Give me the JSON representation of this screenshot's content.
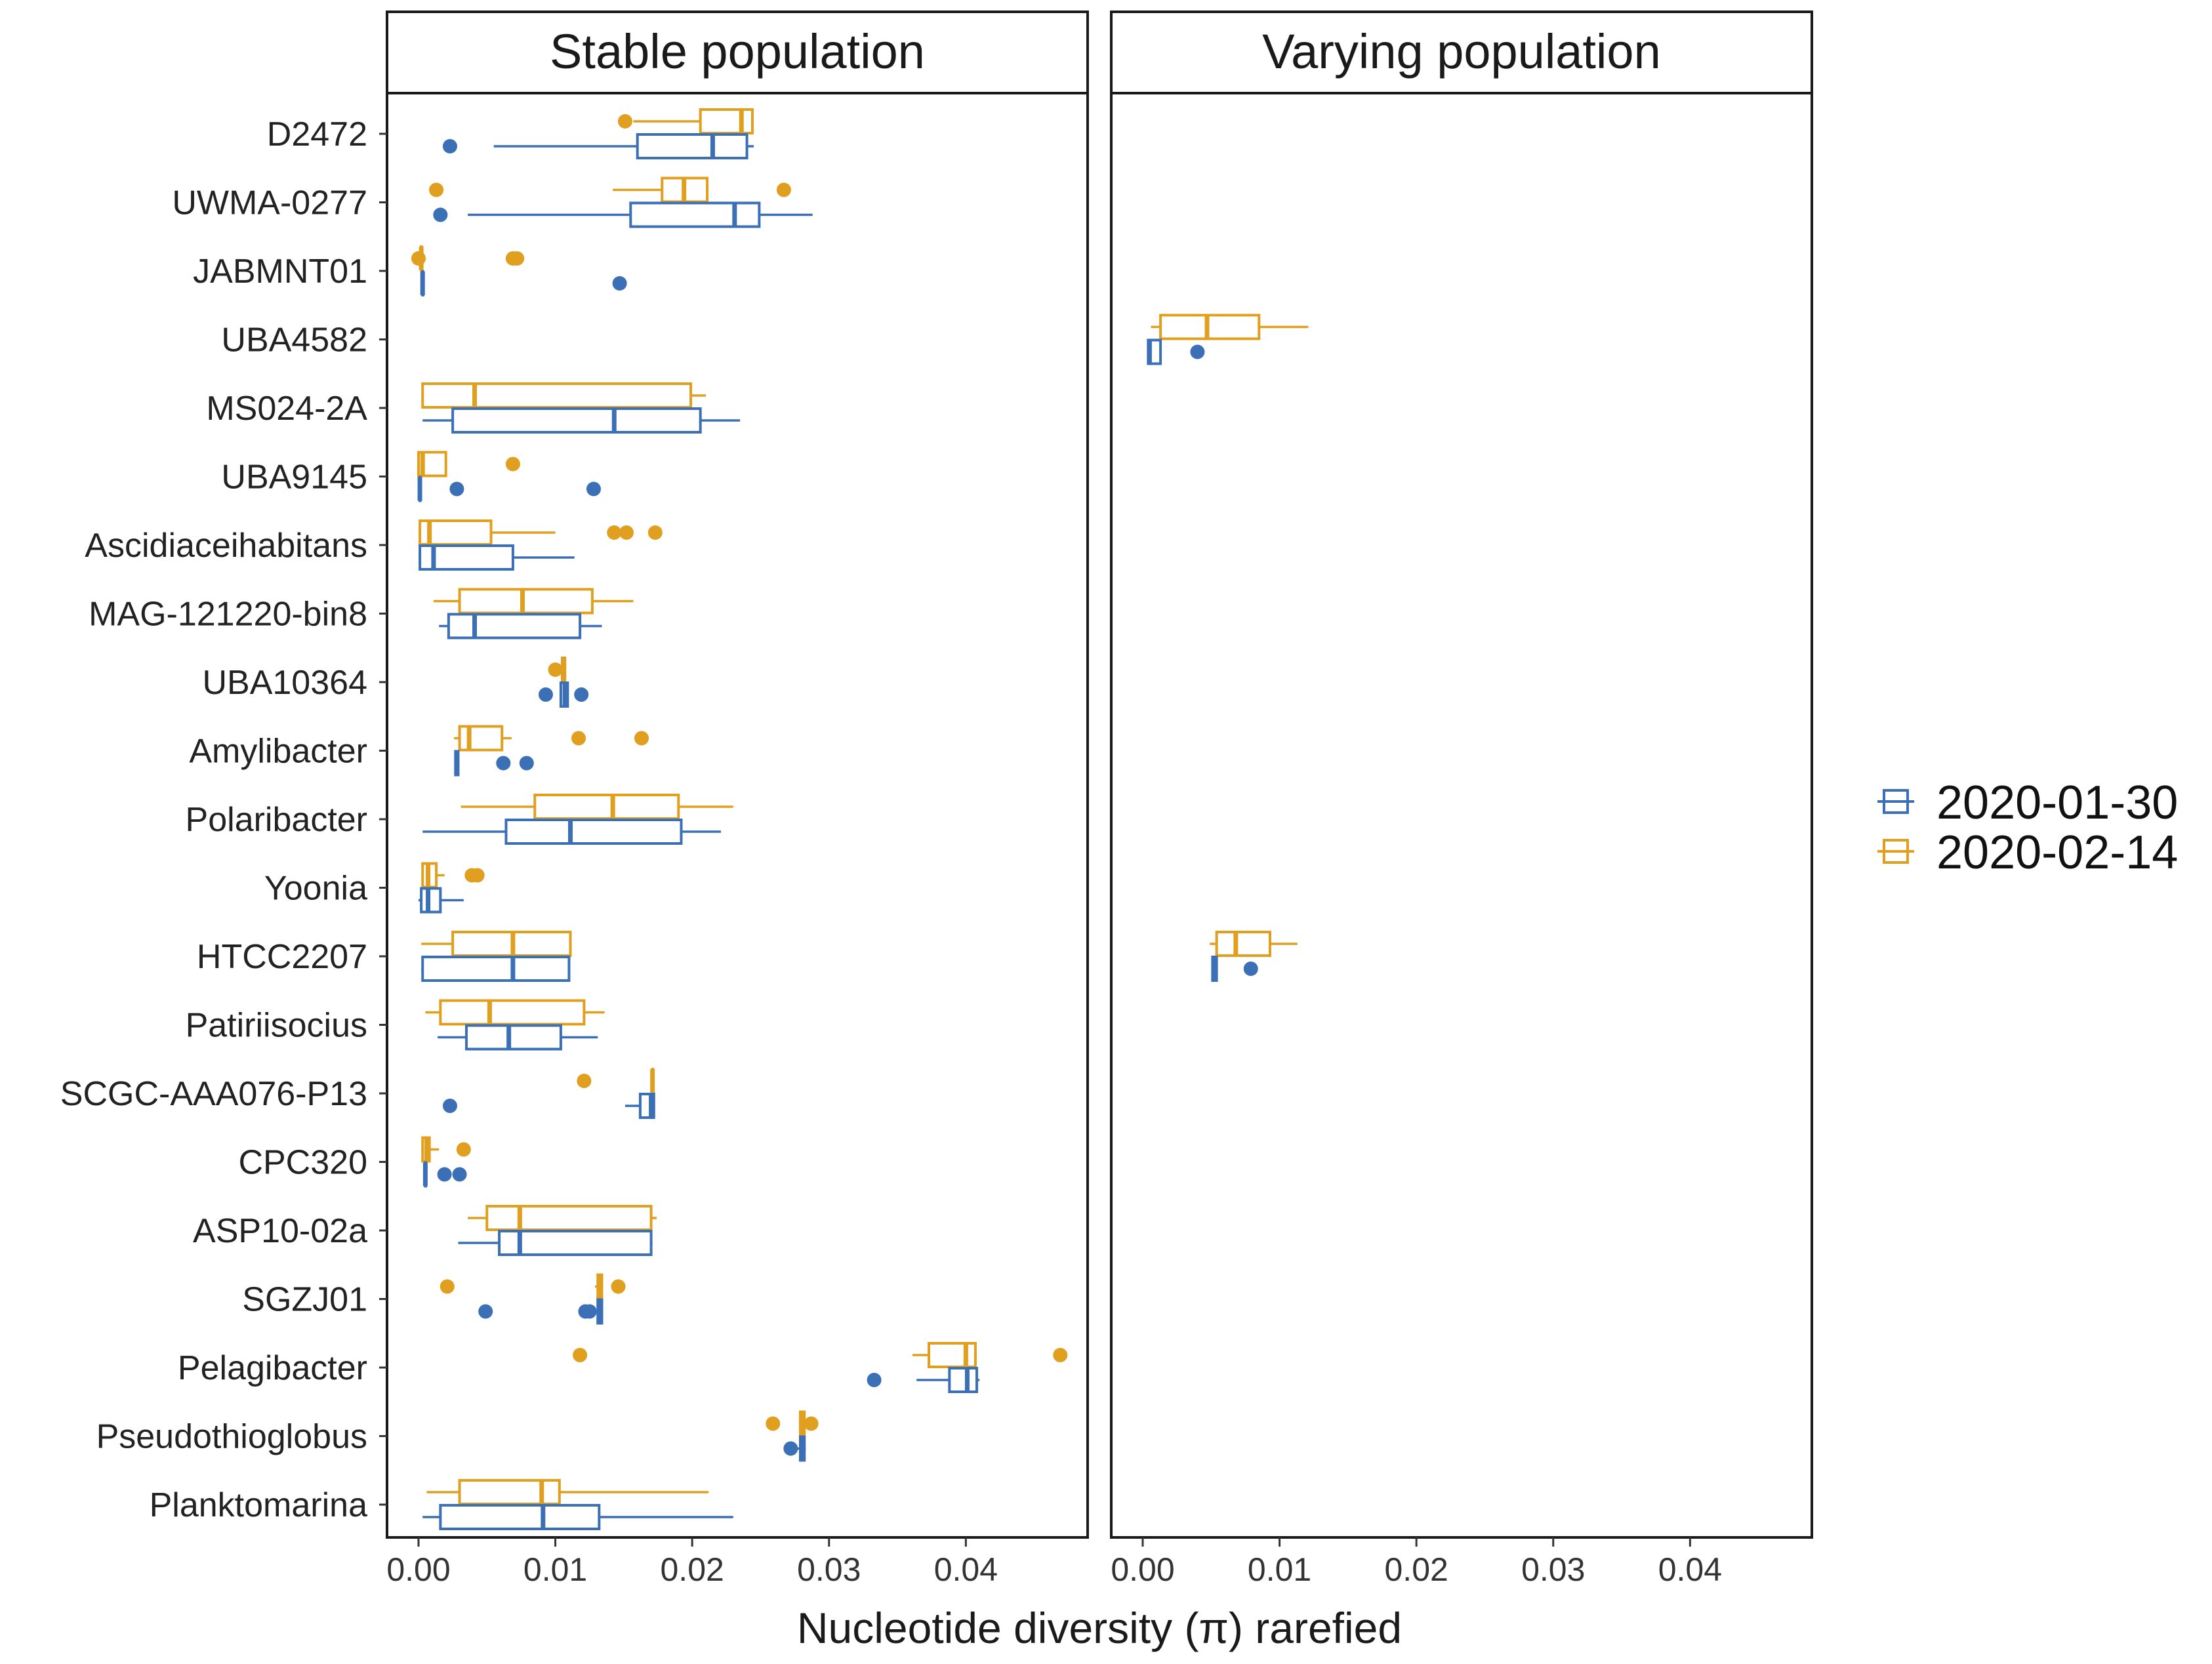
{
  "chart_data": {
    "type": "boxplot",
    "orientation": "horizontal",
    "xlabel": "Nucleotide diversity (π) rarefied",
    "ylabel": "",
    "xlim": [
      -0.0023,
      0.0489
    ],
    "xticks": [
      0,
      0.01,
      0.02,
      0.03,
      0.04
    ],
    "xtick_labels": [
      "0.00",
      "0.01",
      "0.02",
      "0.03",
      "0.04"
    ],
    "colors": {
      "2020-01-30": "#3b6fb6",
      "2020-02-14": "#e09f1f"
    },
    "legend": {
      "position": "right",
      "entries": [
        {
          "label": "2020-01-30",
          "color": "#3b6fb6"
        },
        {
          "label": "2020-02-14",
          "color": "#e09f1f"
        }
      ]
    },
    "categories": [
      "D2472",
      "UWMA-0277",
      "JABMNT01",
      "UBA4582",
      "MS024-2A",
      "UBA9145",
      "Ascidiaceihabitans",
      "MAG-121220-bin8",
      "UBA10364",
      "Amylibacter",
      "Polaribacter",
      "Yoonia",
      "HTCC2207",
      "Patiriisocius",
      "SCGC-AAA076-P13",
      "CPC320",
      "ASP10-02a",
      "SGZJ01",
      "Pelagibacter",
      "Pseudothioglobus",
      "Planktomarina"
    ],
    "panels": [
      {
        "title": "Stable population",
        "boxes": [
          {
            "category": "D2472",
            "series": "2020-02-14",
            "whisker_low": 0.0157,
            "q1": 0.0206,
            "median": 0.0236,
            "q3": 0.0244,
            "whisker_high": 0.0245,
            "outliers": [
              0.0151
            ]
          },
          {
            "category": "D2472",
            "series": "2020-01-30",
            "whisker_low": 0.0055,
            "q1": 0.016,
            "median": 0.0215,
            "q3": 0.024,
            "whisker_high": 0.0245,
            "outliers": [
              0.0023
            ]
          },
          {
            "category": "UWMA-0277",
            "series": "2020-02-14",
            "whisker_low": 0.0142,
            "q1": 0.0178,
            "median": 0.0194,
            "q3": 0.0211,
            "whisker_high": 0.0211,
            "outliers": [
              0.0013,
              0.0267
            ]
          },
          {
            "category": "UWMA-0277",
            "series": "2020-01-30",
            "whisker_low": 0.0036,
            "q1": 0.0155,
            "median": 0.0231,
            "q3": 0.0249,
            "whisker_high": 0.0288,
            "outliers": [
              0.0016
            ]
          },
          {
            "category": "JABMNT01",
            "series": "2020-02-14",
            "whisker_low": 0.0002,
            "q1": 0.0002,
            "median": 0.0002,
            "q3": 0.0002,
            "whisker_high": 0.0002,
            "outliers": [
              0.0,
              0.0069,
              0.0072
            ]
          },
          {
            "category": "JABMNT01",
            "series": "2020-01-30",
            "whisker_low": 0.0003,
            "q1": 0.0003,
            "median": 0.0003,
            "q3": 0.0003,
            "whisker_high": 0.0003,
            "outliers": [
              0.0147
            ]
          },
          {
            "category": "MS024-2A",
            "series": "2020-02-14",
            "whisker_low": 0.0003,
            "q1": 0.0003,
            "median": 0.0041,
            "q3": 0.0199,
            "whisker_high": 0.021,
            "outliers": []
          },
          {
            "category": "MS024-2A",
            "series": "2020-01-30",
            "whisker_low": 0.0003,
            "q1": 0.0025,
            "median": 0.0143,
            "q3": 0.0206,
            "whisker_high": 0.0235,
            "outliers": []
          },
          {
            "category": "UBA9145",
            "series": "2020-02-14",
            "whisker_low": 0.0,
            "q1": 0.0,
            "median": 0.0003,
            "q3": 0.002,
            "whisker_high": 0.002,
            "outliers": [
              0.0069
            ]
          },
          {
            "category": "UBA9145",
            "series": "2020-01-30",
            "whisker_low": 0.0001,
            "q1": 0.0001,
            "median": 0.0001,
            "q3": 0.0001,
            "whisker_high": 0.0001,
            "outliers": [
              0.0028,
              0.0128
            ]
          },
          {
            "category": "Ascidiaceihabitans",
            "series": "2020-02-14",
            "whisker_low": 0.0,
            "q1": 0.0001,
            "median": 0.0008,
            "q3": 0.0053,
            "whisker_high": 0.01,
            "outliers": [
              0.0143,
              0.0152,
              0.0173
            ]
          },
          {
            "category": "Ascidiaceihabitans",
            "series": "2020-01-30",
            "whisker_low": 0.0,
            "q1": 0.0001,
            "median": 0.0011,
            "q3": 0.0069,
            "whisker_high": 0.0114,
            "outliers": []
          },
          {
            "category": "MAG-121220-bin8",
            "series": "2020-02-14",
            "whisker_low": 0.0011,
            "q1": 0.003,
            "median": 0.0076,
            "q3": 0.0127,
            "whisker_high": 0.0157,
            "outliers": []
          },
          {
            "category": "MAG-121220-bin8",
            "series": "2020-01-30",
            "whisker_low": 0.0015,
            "q1": 0.0022,
            "median": 0.0041,
            "q3": 0.0118,
            "whisker_high": 0.0134,
            "outliers": []
          },
          {
            "category": "UBA10364",
            "series": "2020-02-14",
            "whisker_low": 0.0105,
            "q1": 0.0105,
            "median": 0.0106,
            "q3": 0.0107,
            "whisker_high": 0.0107,
            "outliers": [
              0.01
            ]
          },
          {
            "category": "UBA10364",
            "series": "2020-01-30",
            "whisker_low": 0.0104,
            "q1": 0.0104,
            "median": 0.0107,
            "q3": 0.0109,
            "whisker_high": 0.0109,
            "outliers": [
              0.0093,
              0.0119
            ]
          },
          {
            "category": "Amylibacter",
            "series": "2020-02-14",
            "whisker_low": 0.0026,
            "q1": 0.003,
            "median": 0.0037,
            "q3": 0.0061,
            "whisker_high": 0.0068,
            "outliers": [
              0.0117,
              0.0163
            ]
          },
          {
            "category": "Amylibacter",
            "series": "2020-01-30",
            "whisker_low": 0.0027,
            "q1": 0.0027,
            "median": 0.0028,
            "q3": 0.0029,
            "whisker_high": 0.0029,
            "outliers": [
              0.0062,
              0.0079
            ]
          },
          {
            "category": "Polaribacter",
            "series": "2020-02-14",
            "whisker_low": 0.0031,
            "q1": 0.0085,
            "median": 0.0142,
            "q3": 0.019,
            "whisker_high": 0.023,
            "outliers": []
          },
          {
            "category": "Polaribacter",
            "series": "2020-01-30",
            "whisker_low": 0.0003,
            "q1": 0.0064,
            "median": 0.0111,
            "q3": 0.0192,
            "whisker_high": 0.0221,
            "outliers": []
          },
          {
            "category": "Yoonia",
            "series": "2020-02-14",
            "whisker_low": 0.0002,
            "q1": 0.0003,
            "median": 0.0007,
            "q3": 0.0013,
            "whisker_high": 0.0019,
            "outliers": [
              0.0039,
              0.0043
            ]
          },
          {
            "category": "Yoonia",
            "series": "2020-01-30",
            "whisker_low": 0.0,
            "q1": 0.0002,
            "median": 0.0007,
            "q3": 0.0016,
            "whisker_high": 0.0033,
            "outliers": []
          },
          {
            "category": "HTCC2207",
            "series": "2020-02-14",
            "whisker_low": 0.0002,
            "q1": 0.0025,
            "median": 0.0069,
            "q3": 0.0111,
            "whisker_high": 0.0111,
            "outliers": []
          },
          {
            "category": "HTCC2207",
            "series": "2020-01-30",
            "whisker_low": 0.0002,
            "q1": 0.0003,
            "median": 0.0069,
            "q3": 0.011,
            "whisker_high": 0.011,
            "outliers": []
          },
          {
            "category": "Patiriisocius",
            "series": "2020-02-14",
            "whisker_low": 0.0005,
            "q1": 0.0016,
            "median": 0.0052,
            "q3": 0.0121,
            "whisker_high": 0.0136,
            "outliers": []
          },
          {
            "category": "Patiriisocius",
            "series": "2020-01-30",
            "whisker_low": 0.0014,
            "q1": 0.0035,
            "median": 0.0066,
            "q3": 0.0104,
            "whisker_high": 0.0131,
            "outliers": []
          },
          {
            "category": "SCGC-AAA076-P13",
            "series": "2020-02-14",
            "whisker_low": 0.0171,
            "q1": 0.0171,
            "median": 0.0171,
            "q3": 0.0171,
            "whisker_high": 0.0171,
            "outliers": [
              0.0121
            ]
          },
          {
            "category": "SCGC-AAA076-P13",
            "series": "2020-01-30",
            "whisker_low": 0.0151,
            "q1": 0.0162,
            "median": 0.017,
            "q3": 0.0172,
            "whisker_high": 0.0172,
            "outliers": [
              0.0023
            ]
          },
          {
            "category": "CPC320",
            "series": "2020-02-14",
            "whisker_low": 0.0002,
            "q1": 0.0003,
            "median": 0.0006,
            "q3": 0.0008,
            "whisker_high": 0.0015,
            "outliers": [
              0.0033
            ]
          },
          {
            "category": "CPC320",
            "series": "2020-01-30",
            "whisker_low": 0.0005,
            "q1": 0.0005,
            "median": 0.0005,
            "q3": 0.0005,
            "whisker_high": 0.0005,
            "outliers": [
              0.0019,
              0.003
            ]
          },
          {
            "category": "ASP10-02a",
            "series": "2020-02-14",
            "whisker_low": 0.0036,
            "q1": 0.005,
            "median": 0.0074,
            "q3": 0.017,
            "whisker_high": 0.0174,
            "outliers": []
          },
          {
            "category": "ASP10-02a",
            "series": "2020-01-30",
            "whisker_low": 0.0029,
            "q1": 0.0059,
            "median": 0.0074,
            "q3": 0.017,
            "whisker_high": 0.0171,
            "outliers": []
          },
          {
            "category": "SGZJ01",
            "series": "2020-02-14",
            "whisker_low": 0.0129,
            "q1": 0.0131,
            "median": 0.0133,
            "q3": 0.0134,
            "whisker_high": 0.0135,
            "outliers": [
              0.0021,
              0.0146
            ]
          },
          {
            "category": "SGZJ01",
            "series": "2020-01-30",
            "whisker_low": 0.0131,
            "q1": 0.0131,
            "median": 0.0133,
            "q3": 0.0134,
            "whisker_high": 0.0134,
            "outliers": [
              0.0049,
              0.0122,
              0.0125
            ]
          },
          {
            "category": "Pelagibacter",
            "series": "2020-02-14",
            "whisker_low": 0.0361,
            "q1": 0.0373,
            "median": 0.04,
            "q3": 0.0407,
            "whisker_high": 0.0408,
            "outliers": [
              0.0118,
              0.0469
            ]
          },
          {
            "category": "Pelagibacter",
            "series": "2020-01-30",
            "whisker_low": 0.0364,
            "q1": 0.0388,
            "median": 0.0401,
            "q3": 0.0408,
            "whisker_high": 0.041,
            "outliers": [
              0.0333
            ]
          },
          {
            "category": "Pseudothioglobus",
            "series": "2020-02-14",
            "whisker_low": 0.0278,
            "q1": 0.0279,
            "median": 0.0281,
            "q3": 0.0282,
            "whisker_high": 0.0283,
            "outliers": [
              0.0259,
              0.0287
            ]
          },
          {
            "category": "Pseudothioglobus",
            "series": "2020-01-30",
            "whisker_low": 0.0276,
            "q1": 0.0279,
            "median": 0.0281,
            "q3": 0.0282,
            "whisker_high": 0.0283,
            "outliers": [
              0.0272
            ]
          },
          {
            "category": "Planktomarina",
            "series": "2020-02-14",
            "whisker_low": 0.0006,
            "q1": 0.003,
            "median": 0.009,
            "q3": 0.0103,
            "whisker_high": 0.0212,
            "outliers": []
          },
          {
            "category": "Planktomarina",
            "series": "2020-01-30",
            "whisker_low": 0.0003,
            "q1": 0.0016,
            "median": 0.0091,
            "q3": 0.0132,
            "whisker_high": 0.023,
            "outliers": []
          }
        ]
      },
      {
        "title": "Varying population",
        "boxes": [
          {
            "category": "UBA4582",
            "series": "2020-02-14",
            "whisker_low": 0.0006,
            "q1": 0.0013,
            "median": 0.0047,
            "q3": 0.0085,
            "whisker_high": 0.0121,
            "outliers": []
          },
          {
            "category": "UBA4582",
            "series": "2020-01-30",
            "whisker_low": 0.0004,
            "q1": 0.0004,
            "median": 0.0005,
            "q3": 0.0013,
            "whisker_high": 0.0013,
            "outliers": [
              0.004
            ]
          },
          {
            "category": "HTCC2207",
            "series": "2020-02-14",
            "whisker_low": 0.0049,
            "q1": 0.0054,
            "median": 0.0068,
            "q3": 0.0093,
            "whisker_high": 0.0113,
            "outliers": []
          },
          {
            "category": "HTCC2207",
            "series": "2020-01-30",
            "whisker_low": 0.0051,
            "q1": 0.0051,
            "median": 0.0052,
            "q3": 0.0054,
            "whisker_high": 0.0054,
            "outliers": [
              0.0079
            ]
          }
        ]
      }
    ]
  }
}
